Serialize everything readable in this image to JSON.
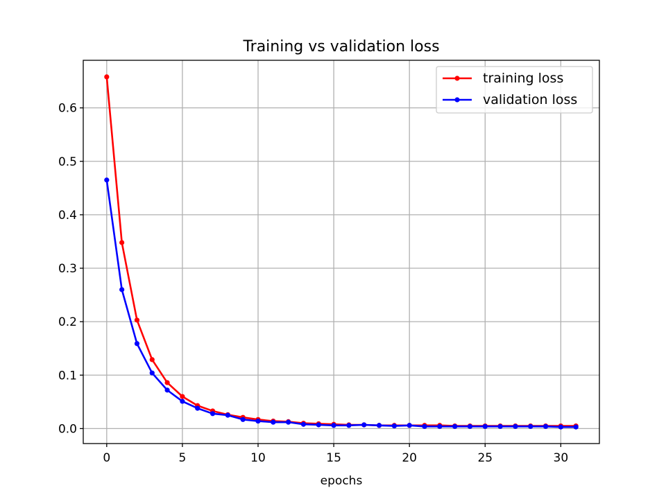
{
  "chart_data": {
    "type": "line",
    "title": "Training vs validation loss",
    "xlabel": "epochs",
    "ylabel": "",
    "xlim": [
      -1.55,
      32.55
    ],
    "ylim": [
      -0.028,
      0.689
    ],
    "xticks": [
      0,
      5,
      10,
      15,
      20,
      25,
      30
    ],
    "yticks": [
      0.0,
      0.1,
      0.2,
      0.3,
      0.4,
      0.5,
      0.6
    ],
    "grid": true,
    "legend_position": "upper right",
    "x": [
      0,
      1,
      2,
      3,
      4,
      5,
      6,
      7,
      8,
      9,
      10,
      11,
      12,
      13,
      14,
      15,
      16,
      17,
      18,
      19,
      20,
      21,
      22,
      23,
      24,
      25,
      26,
      27,
      28,
      29,
      30,
      31
    ],
    "series": [
      {
        "name": "training loss",
        "color": "#ff0000",
        "marker": "dot",
        "values": [
          0.658,
          0.348,
          0.203,
          0.129,
          0.086,
          0.06,
          0.043,
          0.033,
          0.026,
          0.021,
          0.017,
          0.014,
          0.013,
          0.01,
          0.009,
          0.008,
          0.007,
          0.007,
          0.006,
          0.006,
          0.006,
          0.006,
          0.006,
          0.005,
          0.005,
          0.005,
          0.005,
          0.005,
          0.005,
          0.005,
          0.005,
          0.005
        ]
      },
      {
        "name": "validation loss",
        "color": "#0000ff",
        "marker": "dot",
        "values": [
          0.465,
          0.26,
          0.159,
          0.104,
          0.072,
          0.051,
          0.038,
          0.028,
          0.025,
          0.017,
          0.014,
          0.012,
          0.012,
          0.008,
          0.007,
          0.006,
          0.006,
          0.007,
          0.006,
          0.005,
          0.006,
          0.004,
          0.004,
          0.004,
          0.004,
          0.004,
          0.004,
          0.004,
          0.004,
          0.004,
          0.003,
          0.003
        ]
      }
    ]
  }
}
